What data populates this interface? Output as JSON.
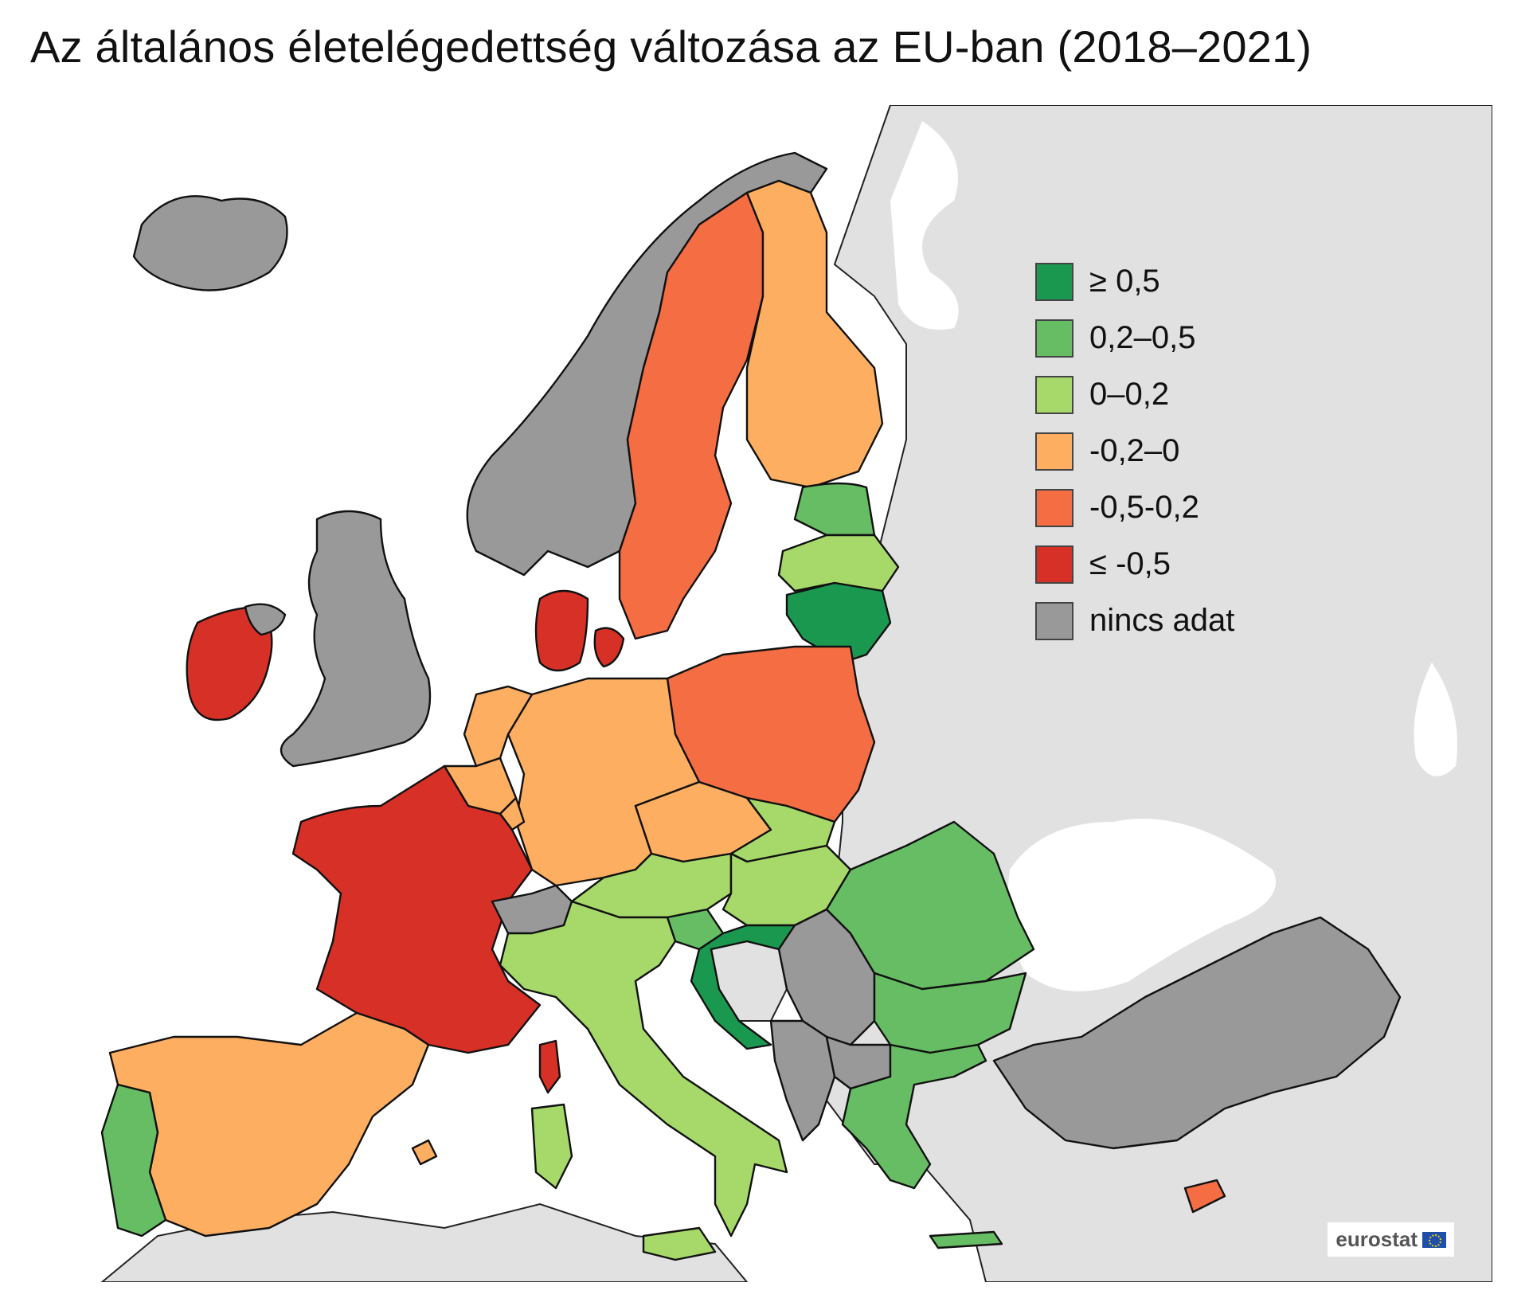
{
  "title": "Az általános életelégedettség változása az EU-ban (2018–2021)",
  "legend": {
    "items": [
      {
        "label": "≥ 0,5",
        "color": "#1a9850"
      },
      {
        "label": "0,2–0,5",
        "color": "#66bd63"
      },
      {
        "label": "0–0,2",
        "color": "#a6d96a"
      },
      {
        "label": "-0,2–0",
        "color": "#fdae61"
      },
      {
        "label": "-0,5-0,2",
        "color": "#f46d43"
      },
      {
        "label": "≤ -0,5",
        "color": "#d73027"
      },
      {
        "label": "nincs adat",
        "color": "#999999"
      }
    ]
  },
  "colors": {
    "non_eu_land": "#e1e1e1",
    "sea": "#ffffff",
    "border": "#111111"
  },
  "brand": {
    "label": "eurostat",
    "icon": "eu-flag-icon"
  }
}
